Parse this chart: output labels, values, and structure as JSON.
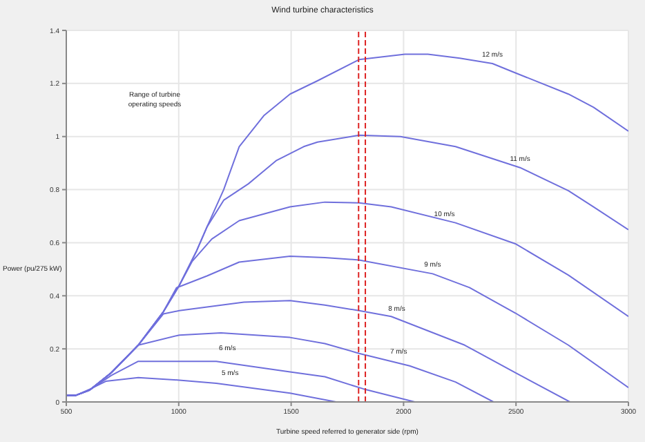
{
  "chart_data": {
    "type": "line",
    "title": "Wind turbine characteristics",
    "xlabel": "Turbine speed referred to generator side (rpm)",
    "ylabel": "Power (pu/275 kW)",
    "xlim": [
      500,
      3000
    ],
    "xticks": [
      500,
      1000,
      1500,
      2000,
      2500,
      3000
    ],
    "ylim": [
      0,
      1.4
    ],
    "yticks": [
      0,
      0.2,
      0.4,
      0.6,
      0.8,
      1,
      1.2,
      1.4
    ],
    "grid": true,
    "marker": "none",
    "line_style": "solid",
    "annotations": [
      "Range of turbine operating speeds"
    ],
    "ref_lines": [
      {
        "axis": "x",
        "value": 1800,
        "color": "#dd2222",
        "line_style": "dashed"
      },
      {
        "axis": "x",
        "value": 1830,
        "color": "#dd2222",
        "line_style": "dashed"
      }
    ],
    "series": [
      {
        "name": "5 m/s",
        "color": "#6f6fdc",
        "x": [
          500,
          543,
          604,
          676,
          820,
          1003,
          1167,
          1495,
          1700
        ],
        "values": [
          0.025,
          0.025,
          0.048,
          0.078,
          0.092,
          0.082,
          0.07,
          0.033,
          0
        ]
      },
      {
        "name": "6 m/s",
        "color": "#6f6fdc",
        "x": [
          500,
          543,
          604,
          700,
          820,
          1167,
          1495,
          1650,
          1822,
          2050
        ],
        "values": [
          0.025,
          0.025,
          0.045,
          0.1,
          0.153,
          0.153,
          0.113,
          0.095,
          0.049,
          0
        ]
      },
      {
        "name": "7 m/s",
        "color": "#6f6fdc",
        "x": [
          500,
          543,
          604,
          700,
          820,
          1003,
          1188,
          1495,
          1650,
          1802,
          2027,
          2231,
          2400
        ],
        "values": [
          0.025,
          0.025,
          0.045,
          0.11,
          0.214,
          0.252,
          0.26,
          0.243,
          0.22,
          0.183,
          0.136,
          0.075,
          0
        ]
      },
      {
        "name": "8 m/s",
        "color": "#6f6fdc",
        "x": [
          500,
          543,
          604,
          700,
          820,
          932,
          1003,
          1290,
          1495,
          1650,
          1802,
          1945,
          2272,
          2497,
          2740
        ],
        "values": [
          0.025,
          0.025,
          0.045,
          0.11,
          0.214,
          0.332,
          0.344,
          0.376,
          0.382,
          0.365,
          0.344,
          0.322,
          0.214,
          0.11,
          0
        ]
      },
      {
        "name": "9 m/s",
        "color": "#6f6fdc",
        "x": [
          500,
          543,
          604,
          700,
          820,
          932,
          990,
          1126,
          1269,
          1495,
          1650,
          1802,
          2129,
          2293,
          2497,
          2733,
          3000
        ],
        "values": [
          0.025,
          0.025,
          0.045,
          0.11,
          0.214,
          0.34,
          0.43,
          0.475,
          0.527,
          0.549,
          0.544,
          0.535,
          0.483,
          0.431,
          0.335,
          0.214,
          0.054
        ]
      },
      {
        "name": "10 m/s",
        "color": "#6f6fdc",
        "x": [
          500,
          543,
          604,
          700,
          820,
          932,
          1003,
          1060,
          1147,
          1269,
          1495,
          1650,
          1802,
          1945,
          2231,
          2497,
          2733,
          3000
        ],
        "values": [
          0.025,
          0.025,
          0.045,
          0.11,
          0.214,
          0.34,
          0.44,
          0.53,
          0.614,
          0.683,
          0.735,
          0.753,
          0.75,
          0.735,
          0.675,
          0.596,
          0.478,
          0.322
        ]
      },
      {
        "name": "11 m/s",
        "color": "#6f6fdc",
        "x": [
          500,
          543,
          604,
          700,
          820,
          932,
          1003,
          1080,
          1126,
          1200,
          1310,
          1433,
          1556,
          1617,
          1802,
          1986,
          2231,
          2518,
          2733,
          2845,
          3000
        ],
        "values": [
          0.025,
          0.025,
          0.045,
          0.11,
          0.214,
          0.34,
          0.44,
          0.57,
          0.66,
          0.76,
          0.822,
          0.909,
          0.962,
          0.979,
          1.005,
          1,
          0.962,
          0.883,
          0.796,
          0.735,
          0.649
        ]
      },
      {
        "name": "12 m/s",
        "color": "#6f6fdc",
        "x": [
          500,
          543,
          604,
          700,
          820,
          932,
          1003,
          1080,
          1126,
          1200,
          1269,
          1380,
          1495,
          1617,
          1802,
          2006,
          2108,
          2250,
          2395,
          2497,
          2733,
          2845,
          3000
        ],
        "values": [
          0.025,
          0.025,
          0.045,
          0.11,
          0.214,
          0.34,
          0.44,
          0.57,
          0.66,
          0.8,
          0.962,
          1.08,
          1.16,
          1.21,
          1.29,
          1.31,
          1.31,
          1.295,
          1.275,
          1.24,
          1.16,
          1.11,
          1.02
        ]
      }
    ]
  }
}
